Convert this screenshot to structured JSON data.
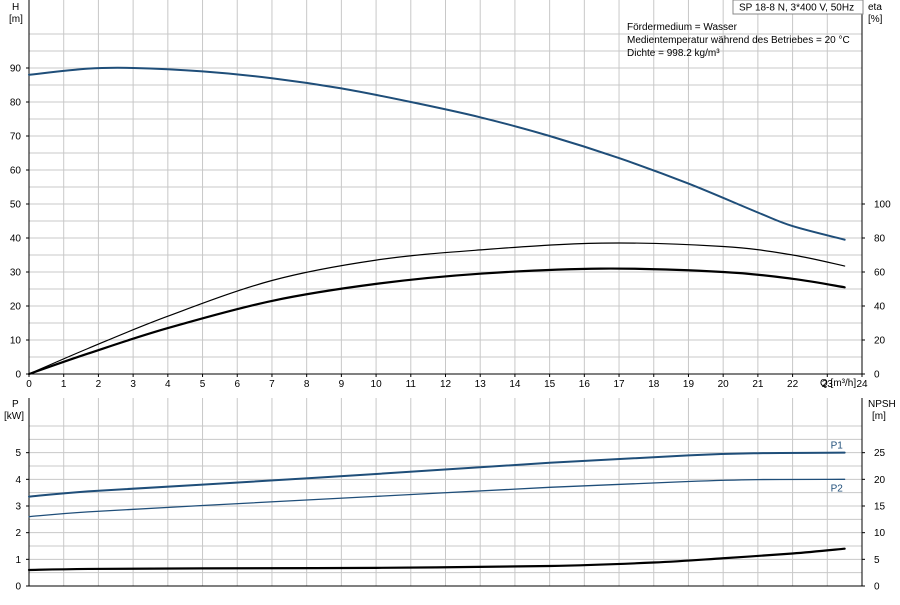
{
  "info": {
    "title": "SP 18-8 N, 3*400 V, 50Hz",
    "lines": [
      "Fördermedium = Wasser",
      "Medientemperatur während des Betriebes = 20 °C",
      "Dichte = 998.2 kg/m³"
    ]
  },
  "colors": {
    "head_curve": "#1f4e79",
    "power_curve": "#1f4e79",
    "eta_curve": "#000000",
    "npsh_curve": "#000000",
    "grid": "#c8c8c8"
  },
  "chart_data": [
    {
      "type": "line",
      "x_label": "Q [m³/h]",
      "xlim": [
        0,
        24
      ],
      "x_ticks": [
        0,
        1,
        2,
        3,
        4,
        5,
        6,
        7,
        8,
        9,
        10,
        11,
        12,
        13,
        14,
        15,
        16,
        17,
        18,
        19,
        20,
        21,
        22,
        23,
        24
      ],
      "y_left": {
        "label_top": "H",
        "label_unit": "[m]",
        "ylim": [
          0,
          100
        ],
        "ticks": [
          0,
          10,
          20,
          30,
          40,
          50,
          60,
          70,
          80,
          90
        ]
      },
      "y_right": {
        "label_top": "eta",
        "label_unit": "[%]",
        "ylim": [
          0,
          200
        ],
        "ticks": [
          0,
          20,
          40,
          60,
          80,
          100
        ]
      },
      "grid": true,
      "series": [
        {
          "axis": "left",
          "x": [
            0,
            1.7,
            3,
            5,
            7,
            9,
            11,
            13,
            15,
            17,
            19,
            21,
            22,
            23.5
          ],
          "y": [
            88,
            89.8,
            90,
            89,
            87,
            84,
            80,
            75.5,
            70,
            63.5,
            56,
            47.5,
            43.5,
            39.5
          ]
        },
        {
          "axis": "right",
          "x": [
            0,
            1.7,
            4,
            7,
            10,
            13,
            16.5,
            20,
            22,
            23.5
          ],
          "y": [
            0,
            15,
            34,
            55,
            67,
            73,
            77,
            75,
            70,
            63.5
          ]
        },
        {
          "axis": "right",
          "x": [
            0,
            1.7,
            4,
            7,
            10,
            13,
            16.5,
            20,
            22,
            23.5
          ],
          "y": [
            0,
            12,
            27,
            43,
            53,
            59,
            62,
            60,
            56,
            51
          ]
        }
      ]
    },
    {
      "type": "line",
      "xlim": [
        0,
        24
      ],
      "y_left": {
        "label_top": "P",
        "label_unit": "[kW]",
        "ylim": [
          0,
          6
        ],
        "ticks": [
          0,
          1,
          2,
          3,
          4,
          5
        ]
      },
      "y_right": {
        "label_top": "NPSH",
        "label_unit": "[m]",
        "ylim": [
          0,
          30
        ],
        "ticks": [
          0,
          5,
          10,
          15,
          20,
          25
        ]
      },
      "grid": true,
      "series": [
        {
          "name": "P1",
          "axis": "left",
          "x": [
            0,
            1.7,
            5,
            10,
            15,
            19,
            21,
            23.5
          ],
          "y": [
            3.35,
            3.55,
            3.8,
            4.2,
            4.62,
            4.9,
            4.98,
            5.0
          ]
        },
        {
          "name": "P2",
          "axis": "left",
          "x": [
            0,
            1.7,
            5,
            10,
            15,
            19,
            21,
            23.5
          ],
          "y": [
            2.6,
            2.78,
            3.02,
            3.36,
            3.7,
            3.92,
            3.99,
            4.0
          ]
        },
        {
          "axis": "right",
          "x": [
            0,
            1.7,
            5,
            10,
            15,
            18,
            20,
            22,
            23.5
          ],
          "y": [
            3.0,
            3.2,
            3.3,
            3.4,
            3.75,
            4.4,
            5.2,
            6.1,
            7.0
          ]
        }
      ]
    }
  ]
}
